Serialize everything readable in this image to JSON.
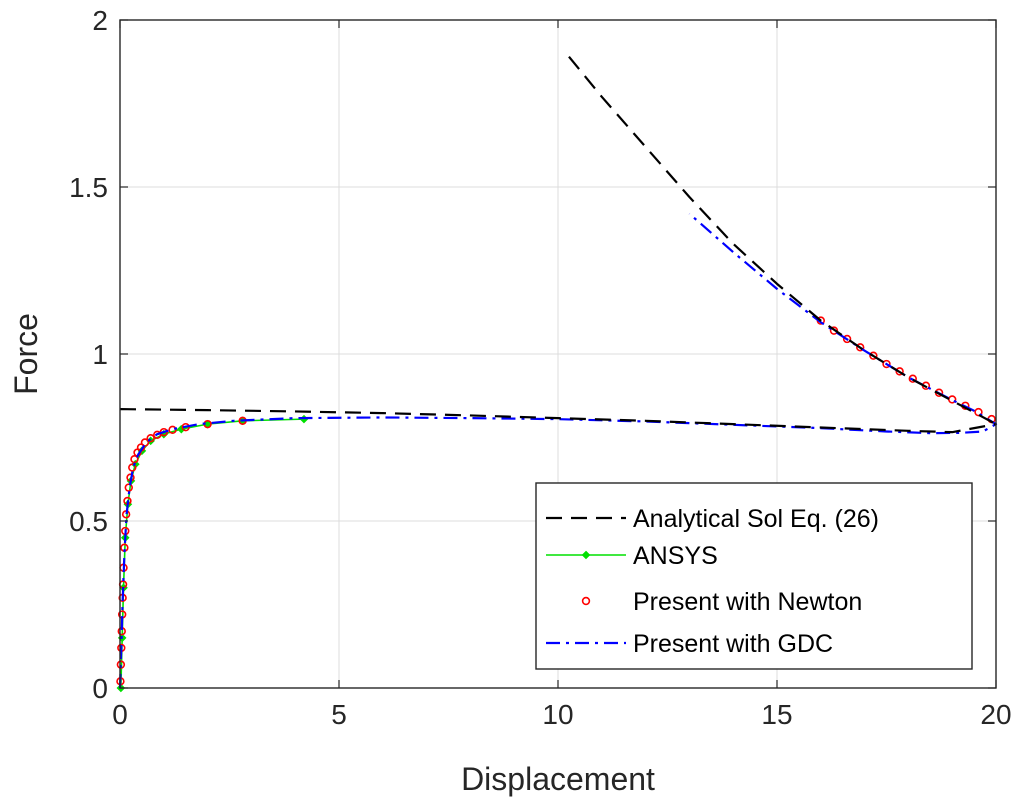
{
  "chart_data": {
    "type": "line",
    "xlabel": "Displacement",
    "ylabel": "Force",
    "xlim": [
      0,
      20
    ],
    "ylim": [
      0,
      2
    ],
    "xticks": [
      "0",
      "5",
      "10",
      "15",
      "20"
    ],
    "yticks": [
      "0",
      "0.5",
      "1",
      "1.5",
      "2"
    ],
    "grid": true,
    "legend_position": "bottom-right",
    "series": [
      {
        "name": "Analytical Sol Eq. (26)",
        "style": "dashed",
        "color": "#000000",
        "marker": "none",
        "segments": [
          {
            "x": [
              0,
              2,
              4,
              6,
              8,
              10,
              12,
              14,
              16,
              18,
              19,
              20
            ],
            "y": [
              0.835,
              0.832,
              0.828,
              0.823,
              0.816,
              0.808,
              0.8,
              0.79,
              0.78,
              0.77,
              0.766,
              0.79
            ]
          },
          {
            "x": [
              10.25,
              11,
              12,
              13,
              14,
              15,
              16,
              17,
              18,
              19,
              20
            ],
            "y": [
              1.89,
              1.77,
              1.62,
              1.47,
              1.33,
              1.21,
              1.1,
              1.01,
              0.93,
              0.86,
              0.79
            ]
          }
        ]
      },
      {
        "name": "ANSYS",
        "style": "solid",
        "color": "#00e000",
        "marker": "diamond",
        "segments": [
          {
            "x": [
              0.02,
              0.05,
              0.08,
              0.12,
              0.18,
              0.25,
              0.35,
              0.5,
              0.7,
              1.0,
              1.4,
              2.0,
              2.8,
              4.2
            ],
            "y": [
              0.0,
              0.15,
              0.3,
              0.45,
              0.55,
              0.62,
              0.67,
              0.71,
              0.74,
              0.76,
              0.775,
              0.79,
              0.8,
              0.805
            ]
          }
        ]
      },
      {
        "name": "Present with Newton",
        "style": "none",
        "color": "#ff0000",
        "marker": "circle",
        "segments": [
          {
            "x": [
              0.01,
              0.02,
              0.03,
              0.04,
              0.05,
              0.06,
              0.07,
              0.08,
              0.1,
              0.12,
              0.14,
              0.17,
              0.2,
              0.24,
              0.28,
              0.33,
              0.4,
              0.48,
              0.57,
              0.7,
              0.85,
              1.0,
              1.2,
              1.5,
              2.0,
              2.8
            ],
            "y": [
              0.02,
              0.07,
              0.12,
              0.17,
              0.22,
              0.27,
              0.31,
              0.36,
              0.42,
              0.47,
              0.52,
              0.56,
              0.6,
              0.63,
              0.66,
              0.685,
              0.705,
              0.72,
              0.735,
              0.748,
              0.758,
              0.766,
              0.773,
              0.781,
              0.79,
              0.8
            ]
          },
          {
            "x": [
              16.0,
              16.3,
              16.6,
              16.9,
              17.2,
              17.5,
              17.8,
              18.1,
              18.4,
              18.7,
              19.0,
              19.3,
              19.6,
              19.9
            ],
            "y": [
              1.1,
              1.07,
              1.045,
              1.02,
              0.995,
              0.97,
              0.948,
              0.926,
              0.905,
              0.884,
              0.864,
              0.845,
              0.826,
              0.805
            ]
          }
        ]
      },
      {
        "name": "Present with GDC",
        "style": "dashdot",
        "color": "#0000ff",
        "marker": "none",
        "segments": [
          {
            "x": [
              0.0,
              0.03,
              0.06,
              0.1,
              0.15,
              0.22,
              0.3,
              0.42,
              0.6,
              0.85,
              1.2,
              1.8,
              2.6,
              4.0,
              6.0,
              8.0,
              10.0,
              12.0,
              14.0,
              16.0,
              17.5,
              18.5,
              19.2,
              19.7,
              20.0,
              19.5,
              19.0,
              18.0,
              17.0,
              16.0,
              15.0,
              14.0,
              13.0
            ],
            "y": [
              0.0,
              0.12,
              0.26,
              0.4,
              0.52,
              0.6,
              0.66,
              0.7,
              0.735,
              0.76,
              0.775,
              0.79,
              0.8,
              0.808,
              0.81,
              0.808,
              0.805,
              0.798,
              0.788,
              0.778,
              0.768,
              0.763,
              0.764,
              0.768,
              0.79,
              0.83,
              0.862,
              0.93,
              1.01,
              1.095,
              1.195,
              1.305,
              1.42
            ]
          }
        ]
      }
    ]
  }
}
